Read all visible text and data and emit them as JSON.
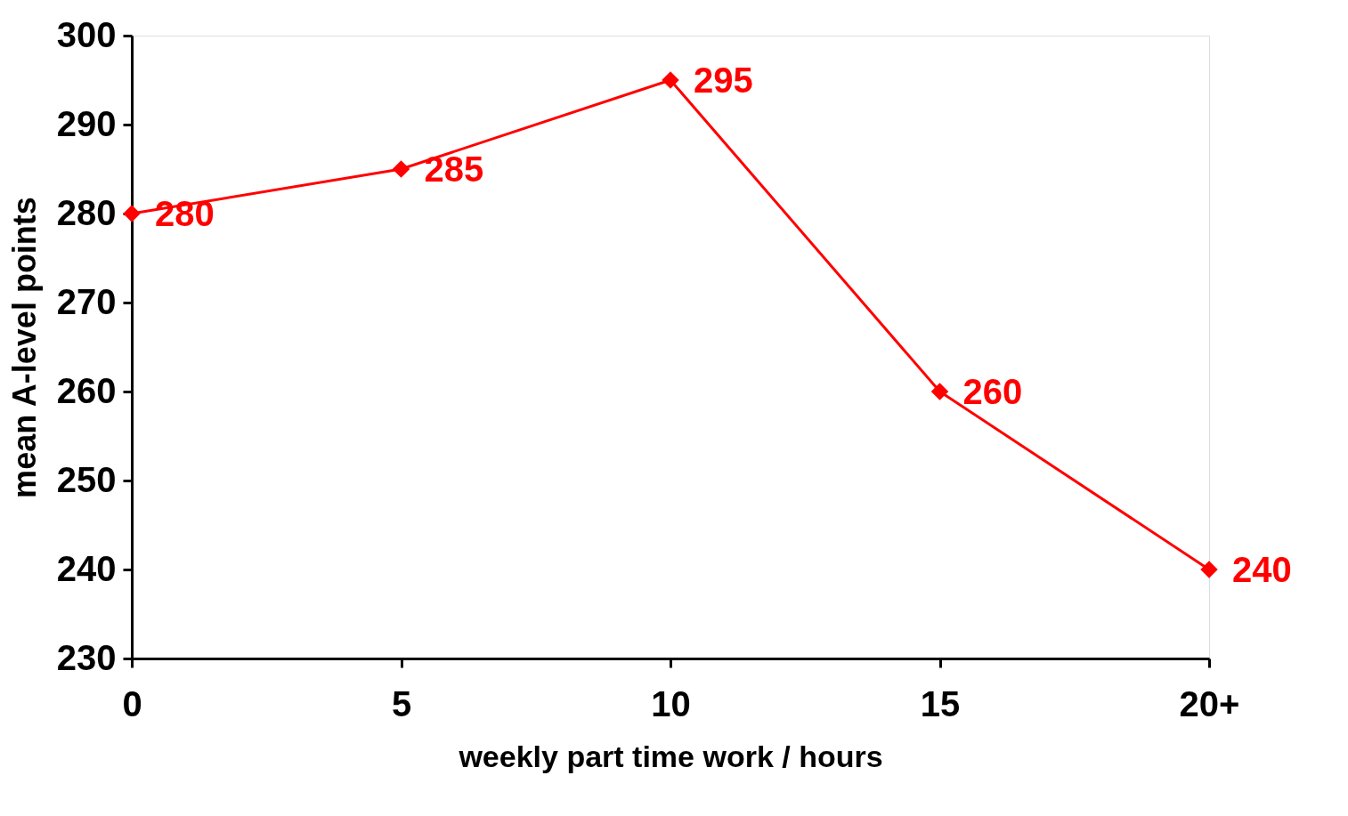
{
  "chart_data": {
    "type": "line",
    "xlabel": "weekly part time work / hours",
    "ylabel": "mean A-level points",
    "categories": [
      "0",
      "5",
      "10",
      "15",
      "20+"
    ],
    "series": [
      {
        "color": "#ff0000",
        "values": [
          280,
          285,
          295,
          260,
          240
        ]
      }
    ],
    "ylim": [
      230,
      300
    ],
    "yticks": [
      230,
      240,
      250,
      260,
      270,
      280,
      290,
      300
    ],
    "data_labels": true,
    "marker": "diamond",
    "line_style": "solid",
    "grid": false
  }
}
